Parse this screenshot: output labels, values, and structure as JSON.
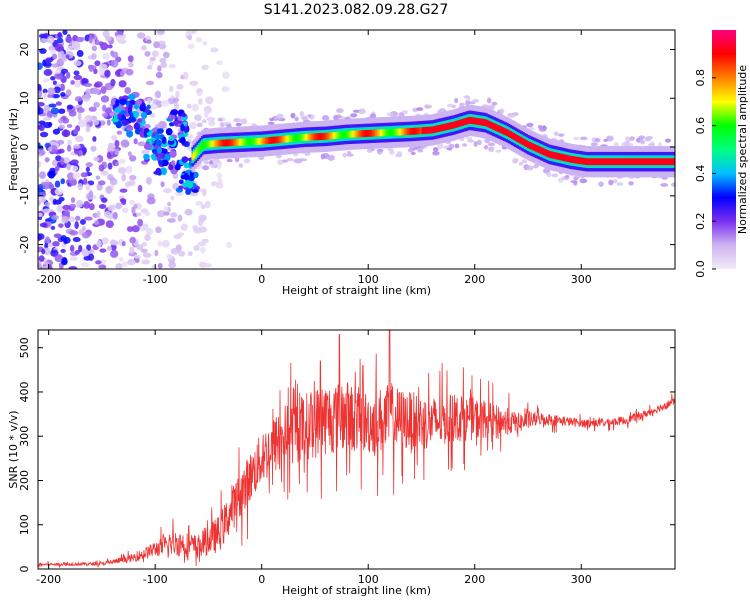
{
  "figure_title": "S141.2023.082.09.28.G27",
  "chart_data": [
    {
      "type": "heatmap",
      "title": "",
      "xlabel": "Height of straight line (km)",
      "ylabel": "Frequency (Hz)",
      "xlim": [
        -210,
        388
      ],
      "ylim": [
        -25,
        24
      ],
      "x_ticks": [
        -200,
        -100,
        0,
        100,
        200,
        300
      ],
      "y_ticks": [
        -20,
        -10,
        0,
        10,
        20
      ],
      "colorbar": {
        "label": "Normalized spectral amplitude",
        "range": [
          0,
          1
        ],
        "ticks": [
          0.0,
          0.2,
          0.4,
          0.6,
          0.8
        ],
        "colors": [
          "#f2ecf8",
          "#cdb3f0",
          "#7b2ff0",
          "#0000ff",
          "#00c0ff",
          "#00ff80",
          "#00ff00",
          "#ffff00",
          "#ff8000",
          "#ff0000",
          "#ff0080"
        ]
      },
      "ridge": {
        "x": [
          -65,
          -55,
          -40,
          -20,
          0,
          20,
          40,
          60,
          80,
          100,
          120,
          140,
          160,
          180,
          195,
          210,
          230,
          250,
          270,
          290,
          305,
          330,
          360,
          388
        ],
        "y": [
          -2,
          0.5,
          0.8,
          1.0,
          1.2,
          1.6,
          2.0,
          2.2,
          2.6,
          2.8,
          3.0,
          3.2,
          3.5,
          4.5,
          5.5,
          5.0,
          3.0,
          0.5,
          -1.5,
          -2.5,
          -3.0,
          -3.0,
          -3.0,
          -3.0
        ]
      },
      "clusters": [
        {
          "x": -130,
          "y": 7,
          "amp": 0.3
        },
        {
          "x": -115,
          "y": 6,
          "amp": 0.3
        },
        {
          "x": -100,
          "y": 0,
          "amp": 0.3
        },
        {
          "x": -90,
          "y": -2,
          "amp": 0.3
        },
        {
          "x": -78,
          "y": 4,
          "amp": 0.3
        },
        {
          "x": -70,
          "y": -6,
          "amp": 0.3
        }
      ],
      "grid": false
    },
    {
      "type": "line",
      "title": "",
      "xlabel": "Height of straight line (km)",
      "ylabel": "SNR (10 * v/v)",
      "xlim": [
        -210,
        388
      ],
      "ylim": [
        0,
        540
      ],
      "x_ticks": [
        -200,
        -100,
        0,
        100,
        200,
        300
      ],
      "y_ticks": [
        0,
        100,
        200,
        300,
        400,
        500
      ],
      "series": [
        {
          "color": "#ee3333",
          "trend_x": [
            -210,
            -150,
            -120,
            -100,
            -80,
            -60,
            -40,
            -20,
            0,
            20,
            40,
            60,
            80,
            100,
            120,
            140,
            160,
            180,
            200,
            220,
            240,
            260,
            280,
            300,
            320,
            340,
            360,
            388
          ],
          "trend_y": [
            10,
            12,
            25,
            45,
            60,
            50,
            80,
            170,
            250,
            300,
            320,
            340,
            345,
            330,
            340,
            335,
            330,
            340,
            340,
            335,
            330,
            340,
            335,
            330,
            330,
            335,
            350,
            380
          ],
          "noise_amplitude": [
            5,
            6,
            15,
            30,
            50,
            45,
            70,
            90,
            100,
            120,
            130,
            140,
            130,
            120,
            130,
            110,
            100,
            90,
            80,
            60,
            40,
            25,
            20,
            15,
            15,
            15,
            15,
            15
          ],
          "peaks": [
            {
              "x": 73,
              "y": 530
            },
            {
              "x": 120,
              "y": 538
            },
            {
              "x": 95,
              "y": 460
            },
            {
              "x": 55,
              "y": 470
            }
          ]
        }
      ],
      "grid": false
    }
  ]
}
